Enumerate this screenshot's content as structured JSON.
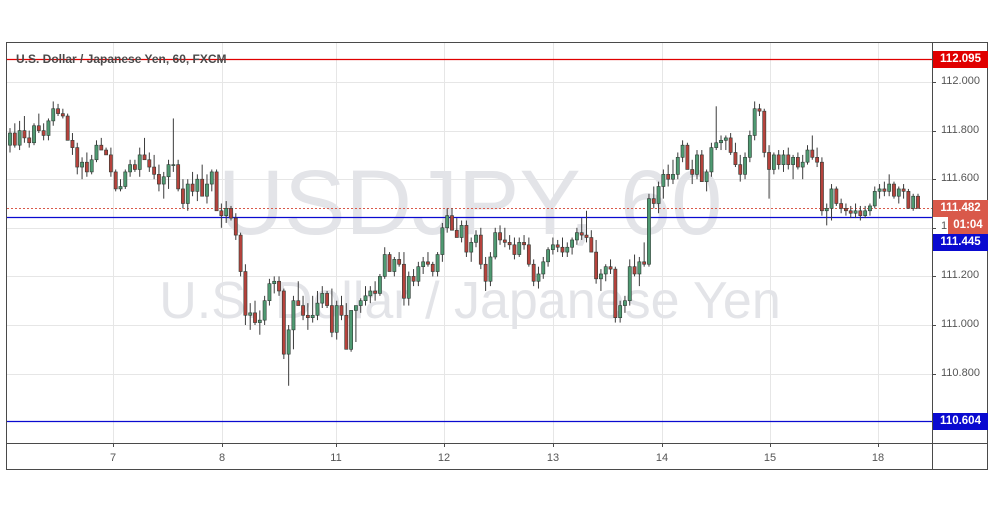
{
  "chart_data": {
    "type": "candlestick",
    "title": "U.S. Dollar / Japanese Yen, 60, FXCM",
    "symbol": "USDJPY",
    "interval": "60",
    "watermark_line1": "USDJPY, 60",
    "watermark_line2": "U.S. Dollar / Japanese Yen",
    "xlabel": "",
    "ylabel": "",
    "ylim": [
      110.25,
      112.15
    ],
    "grid": true,
    "price_ticks": [
      "112.000",
      "111.800",
      "111.600",
      "111.200",
      "111.000",
      "110.800"
    ],
    "time_ticks": [
      "7",
      "8",
      "11",
      "12",
      "13",
      "14",
      "15",
      "18"
    ],
    "horizontal_lines": [
      {
        "name": "resistance",
        "price": 112.095,
        "label": "112.095",
        "color": "#e00000"
      },
      {
        "name": "support-near",
        "price": 111.445,
        "label": "111.445",
        "color": "#0a0ad0"
      },
      {
        "name": "support-far",
        "price": 110.604,
        "label": "110.604",
        "color": "#0a0ad0"
      }
    ],
    "last_price": {
      "price": 111.482,
      "label": "111.482",
      "countdown": "01:04",
      "color": "#d9594a"
    },
    "partial_tick_label": "1",
    "candles": [
      [
        111.74,
        111.81,
        111.71,
        111.79
      ],
      [
        111.79,
        111.83,
        111.73,
        111.74
      ],
      [
        111.74,
        111.84,
        111.72,
        111.8
      ],
      [
        111.8,
        111.86,
        111.75,
        111.77
      ],
      [
        111.77,
        111.8,
        111.73,
        111.75
      ],
      [
        111.75,
        111.83,
        111.74,
        111.82
      ],
      [
        111.82,
        111.87,
        111.79,
        111.8
      ],
      [
        111.8,
        111.83,
        111.76,
        111.78
      ],
      [
        111.78,
        111.85,
        111.76,
        111.84
      ],
      [
        111.84,
        111.92,
        111.82,
        111.89
      ],
      [
        111.89,
        111.91,
        111.86,
        111.87
      ],
      [
        111.87,
        111.89,
        111.85,
        111.86
      ],
      [
        111.86,
        111.87,
        111.76,
        111.76
      ],
      [
        111.76,
        111.79,
        111.7,
        111.73
      ],
      [
        111.73,
        111.75,
        111.62,
        111.65
      ],
      [
        111.65,
        111.69,
        111.6,
        111.67
      ],
      [
        111.67,
        111.71,
        111.61,
        111.63
      ],
      [
        111.63,
        111.7,
        111.62,
        111.68
      ],
      [
        111.68,
        111.76,
        111.67,
        111.74
      ],
      [
        111.74,
        111.77,
        111.72,
        111.72
      ],
      [
        111.72,
        111.73,
        111.7,
        111.7
      ],
      [
        111.7,
        111.73,
        111.61,
        111.63
      ],
      [
        111.63,
        111.64,
        111.55,
        111.56
      ],
      [
        111.56,
        111.6,
        111.55,
        111.57
      ],
      [
        111.57,
        111.64,
        111.56,
        111.63
      ],
      [
        111.63,
        111.68,
        111.61,
        111.66
      ],
      [
        111.66,
        111.68,
        111.63,
        111.64
      ],
      [
        111.64,
        111.73,
        111.61,
        111.7
      ],
      [
        111.7,
        111.77,
        111.68,
        111.68
      ],
      [
        111.68,
        111.71,
        111.63,
        111.65
      ],
      [
        111.65,
        111.7,
        111.6,
        111.62
      ],
      [
        111.62,
        111.66,
        111.55,
        111.58
      ],
      [
        111.58,
        111.63,
        111.52,
        111.61
      ],
      [
        111.61,
        111.68,
        111.56,
        111.66
      ],
      [
        111.66,
        111.85,
        111.63,
        111.66
      ],
      [
        111.66,
        111.68,
        111.55,
        111.56
      ],
      [
        111.56,
        111.6,
        111.48,
        111.5
      ],
      [
        111.5,
        111.6,
        111.47,
        111.58
      ],
      [
        111.58,
        111.63,
        111.53,
        111.55
      ],
      [
        111.55,
        111.62,
        111.51,
        111.6
      ],
      [
        111.6,
        111.66,
        111.55,
        111.53
      ],
      [
        111.53,
        111.62,
        111.5,
        111.58
      ],
      [
        111.58,
        111.64,
        111.55,
        111.63
      ],
      [
        111.63,
        111.64,
        111.47,
        111.47
      ],
      [
        111.47,
        111.5,
        111.4,
        111.45
      ],
      [
        111.45,
        111.51,
        111.42,
        111.48
      ],
      [
        111.48,
        111.49,
        111.43,
        111.44
      ],
      [
        111.44,
        111.46,
        111.35,
        111.37
      ],
      [
        111.37,
        111.38,
        111.2,
        111.22
      ],
      [
        111.22,
        111.25,
        111.0,
        111.04
      ],
      [
        111.04,
        111.09,
        110.98,
        111.05
      ],
      [
        111.05,
        111.1,
        111.0,
        111.01
      ],
      [
        111.01,
        111.06,
        110.96,
        111.02
      ],
      [
        111.02,
        111.12,
        111.0,
        111.1
      ],
      [
        111.1,
        111.19,
        111.08,
        111.17
      ],
      [
        111.17,
        111.2,
        111.13,
        111.18
      ],
      [
        111.18,
        111.2,
        111.12,
        111.14
      ],
      [
        111.14,
        111.15,
        110.86,
        110.88
      ],
      [
        110.88,
        111.0,
        110.75,
        110.98
      ],
      [
        110.98,
        111.12,
        110.9,
        111.1
      ],
      [
        111.1,
        111.18,
        111.08,
        111.08
      ],
      [
        111.08,
        111.12,
        111.02,
        111.04
      ],
      [
        111.04,
        111.09,
        110.98,
        111.03
      ],
      [
        111.03,
        111.12,
        111.01,
        111.04
      ],
      [
        111.04,
        111.14,
        111.02,
        111.09
      ],
      [
        111.09,
        111.16,
        111.07,
        111.13
      ],
      [
        111.13,
        111.14,
        111.07,
        111.08
      ],
      [
        111.08,
        111.15,
        110.95,
        110.97
      ],
      [
        110.97,
        111.1,
        110.94,
        111.08
      ],
      [
        111.08,
        111.12,
        111.02,
        111.04
      ],
      [
        111.04,
        111.09,
        110.9,
        110.9
      ],
      [
        110.9,
        111.06,
        110.89,
        111.06
      ],
      [
        111.06,
        111.08,
        110.93,
        111.08
      ],
      [
        111.08,
        111.11,
        111.05,
        111.1
      ],
      [
        111.1,
        111.16,
        111.08,
        111.12
      ],
      [
        111.12,
        111.16,
        111.09,
        111.14
      ],
      [
        111.14,
        111.18,
        111.1,
        111.13
      ],
      [
        111.13,
        111.21,
        111.12,
        111.2
      ],
      [
        111.2,
        111.32,
        111.19,
        111.29
      ],
      [
        111.29,
        111.3,
        111.22,
        111.22
      ],
      [
        111.22,
        111.28,
        111.2,
        111.27
      ],
      [
        111.27,
        111.3,
        111.24,
        111.25
      ],
      [
        111.25,
        111.3,
        111.08,
        111.11
      ],
      [
        111.11,
        111.22,
        111.08,
        111.2
      ],
      [
        111.2,
        111.23,
        111.16,
        111.18
      ],
      [
        111.18,
        111.26,
        111.16,
        111.24
      ],
      [
        111.24,
        111.28,
        111.21,
        111.26
      ],
      [
        111.26,
        111.3,
        111.24,
        111.25
      ],
      [
        111.25,
        111.26,
        111.2,
        111.22
      ],
      [
        111.22,
        111.3,
        111.2,
        111.29
      ],
      [
        111.29,
        111.42,
        111.26,
        111.4
      ],
      [
        111.4,
        111.48,
        111.38,
        111.45
      ],
      [
        111.45,
        111.48,
        111.39,
        111.39
      ],
      [
        111.39,
        111.44,
        111.36,
        111.36
      ],
      [
        111.36,
        111.43,
        111.34,
        111.41
      ],
      [
        111.41,
        111.43,
        111.28,
        111.3
      ],
      [
        111.3,
        111.36,
        111.26,
        111.34
      ],
      [
        111.34,
        111.39,
        111.32,
        111.37
      ],
      [
        111.37,
        111.4,
        111.23,
        111.25
      ],
      [
        111.25,
        111.28,
        111.14,
        111.18
      ],
      [
        111.18,
        111.3,
        111.16,
        111.28
      ],
      [
        111.28,
        111.4,
        111.27,
        111.38
      ],
      [
        111.38,
        111.41,
        111.33,
        111.35
      ],
      [
        111.35,
        111.4,
        111.32,
        111.34
      ],
      [
        111.34,
        111.37,
        111.31,
        111.33
      ],
      [
        111.33,
        111.36,
        111.27,
        111.29
      ],
      [
        111.29,
        111.36,
        111.28,
        111.34
      ],
      [
        111.34,
        111.37,
        111.31,
        111.33
      ],
      [
        111.33,
        111.36,
        111.24,
        111.25
      ],
      [
        111.25,
        111.27,
        111.16,
        111.18
      ],
      [
        111.18,
        111.24,
        111.15,
        111.21
      ],
      [
        111.21,
        111.28,
        111.19,
        111.26
      ],
      [
        111.26,
        111.32,
        111.24,
        111.31
      ],
      [
        111.31,
        111.36,
        111.29,
        111.33
      ],
      [
        111.33,
        111.35,
        111.3,
        111.32
      ],
      [
        111.32,
        111.36,
        111.28,
        111.3
      ],
      [
        111.3,
        111.34,
        111.28,
        111.32
      ],
      [
        111.32,
        111.36,
        111.29,
        111.35
      ],
      [
        111.35,
        111.4,
        111.33,
        111.38
      ],
      [
        111.38,
        111.44,
        111.35,
        111.37
      ],
      [
        111.37,
        111.47,
        111.34,
        111.36
      ],
      [
        111.36,
        111.39,
        111.3,
        111.3
      ],
      [
        111.3,
        111.35,
        111.17,
        111.19
      ],
      [
        111.19,
        111.23,
        111.14,
        111.21
      ],
      [
        111.21,
        111.25,
        111.18,
        111.24
      ],
      [
        111.24,
        111.27,
        111.21,
        111.23
      ],
      [
        111.23,
        111.24,
        111.01,
        111.03
      ],
      [
        111.03,
        111.1,
        111.01,
        111.08
      ],
      [
        111.08,
        111.12,
        111.05,
        111.1
      ],
      [
        111.1,
        111.27,
        111.08,
        111.24
      ],
      [
        111.24,
        111.29,
        111.2,
        111.21
      ],
      [
        111.21,
        111.28,
        111.16,
        111.26
      ],
      [
        111.26,
        111.34,
        111.24,
        111.25
      ],
      [
        111.25,
        111.54,
        111.24,
        111.52
      ],
      [
        111.52,
        111.57,
        111.48,
        111.5
      ],
      [
        111.5,
        111.59,
        111.46,
        111.57
      ],
      [
        111.57,
        111.64,
        111.52,
        111.62
      ],
      [
        111.62,
        111.66,
        111.57,
        111.6
      ],
      [
        111.6,
        111.68,
        111.58,
        111.62
      ],
      [
        111.62,
        111.71,
        111.6,
        111.69
      ],
      [
        111.69,
        111.76,
        111.67,
        111.74
      ],
      [
        111.74,
        111.75,
        111.64,
        111.64
      ],
      [
        111.64,
        111.68,
        111.58,
        111.62
      ],
      [
        111.62,
        111.72,
        111.6,
        111.7
      ],
      [
        111.7,
        111.72,
        111.59,
        111.59
      ],
      [
        111.59,
        111.64,
        111.55,
        111.63
      ],
      [
        111.63,
        111.75,
        111.61,
        111.73
      ],
      [
        111.73,
        111.9,
        111.72,
        111.75
      ],
      [
        111.75,
        111.78,
        111.72,
        111.76
      ],
      [
        111.76,
        111.78,
        111.72,
        111.77
      ],
      [
        111.77,
        111.79,
        111.7,
        111.71
      ],
      [
        111.71,
        111.75,
        111.65,
        111.66
      ],
      [
        111.66,
        111.7,
        111.59,
        111.62
      ],
      [
        111.62,
        111.71,
        111.6,
        111.69
      ],
      [
        111.69,
        111.8,
        111.67,
        111.78
      ],
      [
        111.78,
        111.92,
        111.76,
        111.89
      ],
      [
        111.89,
        111.91,
        111.86,
        111.88
      ],
      [
        111.88,
        111.89,
        111.69,
        111.71
      ],
      [
        111.71,
        111.74,
        111.52,
        111.64
      ],
      [
        111.64,
        111.71,
        111.62,
        111.7
      ],
      [
        111.7,
        111.72,
        111.64,
        111.66
      ],
      [
        111.66,
        111.72,
        111.63,
        111.7
      ],
      [
        111.7,
        111.73,
        111.64,
        111.66
      ],
      [
        111.66,
        111.7,
        111.6,
        111.69
      ],
      [
        111.69,
        111.71,
        111.64,
        111.65
      ],
      [
        111.65,
        111.7,
        111.6,
        111.67
      ],
      [
        111.67,
        111.74,
        111.66,
        111.72
      ],
      [
        111.72,
        111.78,
        111.68,
        111.69
      ],
      [
        111.69,
        111.73,
        111.65,
        111.67
      ],
      [
        111.67,
        111.69,
        111.45,
        111.47
      ],
      [
        111.47,
        111.5,
        111.41,
        111.48
      ],
      [
        111.48,
        111.58,
        111.43,
        111.56
      ],
      [
        111.56,
        111.57,
        111.49,
        111.5
      ],
      [
        111.5,
        111.52,
        111.46,
        111.48
      ],
      [
        111.48,
        111.5,
        111.45,
        111.47
      ],
      [
        111.47,
        111.49,
        111.44,
        111.46
      ],
      [
        111.46,
        111.5,
        111.44,
        111.47
      ],
      [
        111.47,
        111.49,
        111.43,
        111.45
      ],
      [
        111.45,
        111.49,
        111.44,
        111.47
      ],
      [
        111.47,
        111.5,
        111.45,
        111.49
      ],
      [
        111.49,
        111.57,
        111.48,
        111.55
      ],
      [
        111.55,
        111.58,
        111.52,
        111.56
      ],
      [
        111.56,
        111.59,
        111.53,
        111.55
      ],
      [
        111.55,
        111.62,
        111.53,
        111.58
      ],
      [
        111.58,
        111.59,
        111.52,
        111.53
      ],
      [
        111.53,
        111.57,
        111.5,
        111.56
      ],
      [
        111.56,
        111.58,
        111.52,
        111.55
      ],
      [
        111.55,
        111.56,
        111.48,
        111.48
      ],
      [
        111.48,
        111.54,
        111.47,
        111.53
      ],
      [
        111.53,
        111.54,
        111.48,
        111.48
      ]
    ]
  },
  "chart": {
    "legend_title": "U.S. Dollar / Japanese Yen, 60, FXCM"
  },
  "colors": {
    "up_body": "#4f9a72",
    "down_body": "#b5423c",
    "candle_outline": "#2e3a33",
    "grid": "#e6e6e6",
    "frame": "#4a4a4a"
  }
}
